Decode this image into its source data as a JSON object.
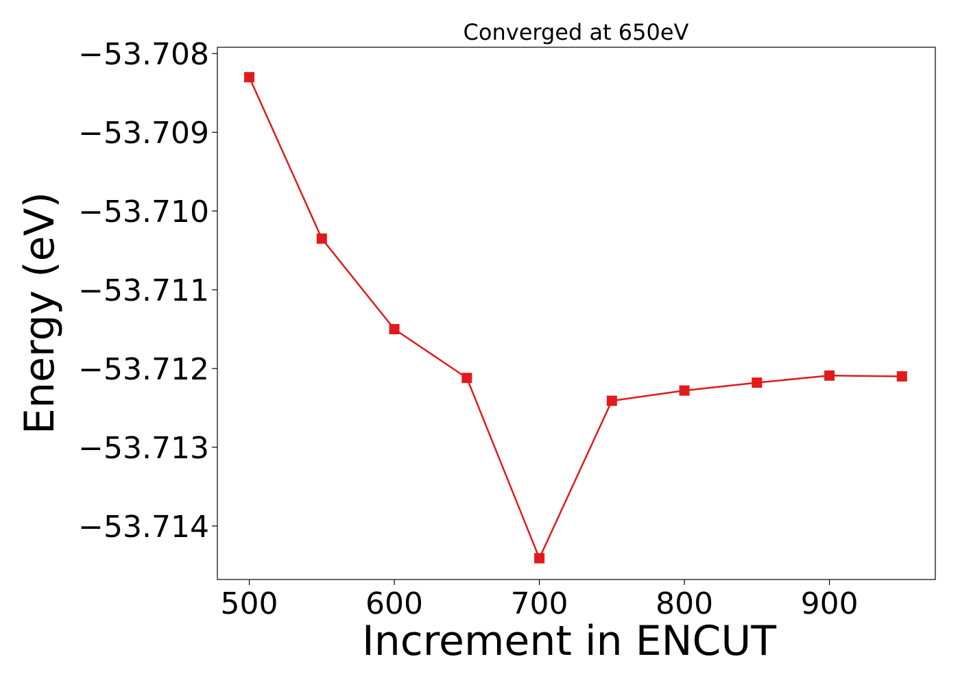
{
  "chart_data": {
    "type": "line",
    "title": "Converged at 650eV",
    "xlabel": "Increment in ENCUT",
    "ylabel": "Energy (eV)",
    "xlim": [
      478,
      973
    ],
    "ylim": [
      -53.71468,
      -53.70792
    ],
    "xticks": [
      500,
      600,
      700,
      800,
      900
    ],
    "xtick_labels": [
      "500",
      "600",
      "700",
      "800",
      "900"
    ],
    "yticks": [
      -53.708,
      -53.709,
      -53.71,
      -53.711,
      -53.712,
      -53.713,
      -53.714
    ],
    "ytick_labels": [
      "−53.708",
      "−53.709",
      "−53.710",
      "−53.711",
      "−53.712",
      "−53.713",
      "−53.714"
    ],
    "grid": false,
    "legend": "none",
    "series": [
      {
        "color": "#e31a1c",
        "marker": "square",
        "x": [
          500,
          550,
          600,
          650,
          700,
          750,
          800,
          850,
          900,
          950
        ],
        "y": [
          -53.7083,
          -53.71035,
          -53.7115,
          -53.71212,
          -53.71441,
          -53.71241,
          -53.71228,
          -53.71218,
          -53.71209,
          -53.7121
        ]
      }
    ]
  }
}
